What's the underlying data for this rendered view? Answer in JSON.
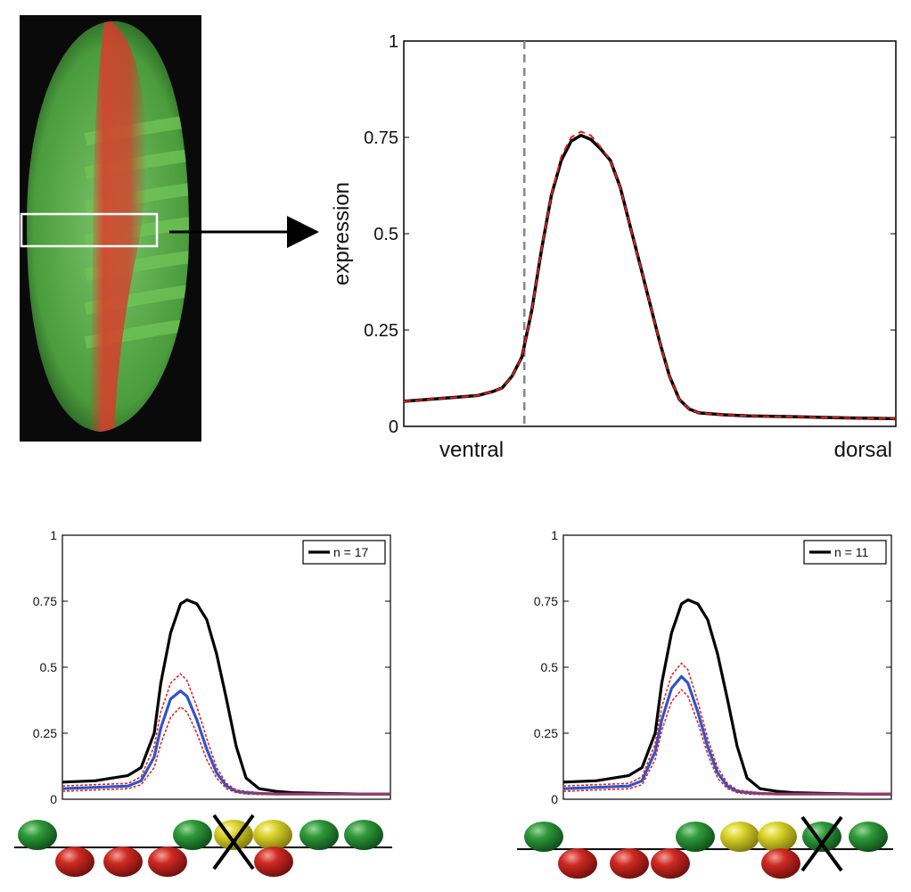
{
  "colors": {
    "mean": "#000000",
    "fit": "#e3231c",
    "mutant": "#2f55c8",
    "marker": "#888888",
    "embryo_bg": "#0a0a0a",
    "embryo_green": "#4fae3c",
    "embryo_red": "#e0392b",
    "site_green": "#1f7a2c",
    "site_red": "#b3201c",
    "site_yellow": "#c9c21e"
  },
  "embryo": {
    "icon": "embryo-fluorescence-image",
    "stripe_count": 7,
    "callout": "arrow-right"
  },
  "chart_data": [
    {
      "type": "line",
      "title": "",
      "xlabel": "",
      "ylabel": "expression",
      "x_end_labels": [
        "ventral",
        "dorsal"
      ],
      "xlim": [
        0,
        1
      ],
      "ylim": [
        0,
        1
      ],
      "yticks": [
        0,
        0.25,
        0.5,
        0.75,
        1
      ],
      "ytick_labels": [
        "0",
        "0.25",
        "0.5",
        "0.75",
        "1"
      ],
      "grid": false,
      "legend": null,
      "vline": {
        "x": 0.245,
        "style": "dashed"
      },
      "x": [
        0,
        0.05,
        0.1,
        0.15,
        0.18,
        0.2,
        0.22,
        0.24,
        0.26,
        0.28,
        0.3,
        0.32,
        0.34,
        0.36,
        0.38,
        0.4,
        0.42,
        0.44,
        0.46,
        0.48,
        0.5,
        0.52,
        0.54,
        0.56,
        0.58,
        0.6,
        0.65,
        0.7,
        0.8,
        0.9,
        1
      ],
      "series": [
        {
          "style": "solid",
          "values": [
            0.065,
            0.07,
            0.075,
            0.08,
            0.09,
            0.1,
            0.13,
            0.18,
            0.3,
            0.46,
            0.6,
            0.69,
            0.74,
            0.755,
            0.745,
            0.72,
            0.69,
            0.62,
            0.52,
            0.42,
            0.32,
            0.22,
            0.13,
            0.07,
            0.045,
            0.035,
            0.03,
            0.027,
            0.025,
            0.022,
            0.02
          ]
        },
        {
          "style": "dashed",
          "values": [
            0.065,
            0.07,
            0.075,
            0.08,
            0.09,
            0.1,
            0.13,
            0.18,
            0.3,
            0.46,
            0.6,
            0.7,
            0.75,
            0.765,
            0.755,
            0.725,
            0.69,
            0.62,
            0.52,
            0.42,
            0.32,
            0.22,
            0.13,
            0.07,
            0.045,
            0.035,
            0.03,
            0.027,
            0.025,
            0.022,
            0.02
          ]
        }
      ]
    },
    {
      "type": "line",
      "title": "",
      "xlabel": "",
      "ylabel": "",
      "xlim": [
        0,
        1
      ],
      "ylim": [
        0,
        1
      ],
      "yticks": [
        0,
        0.25,
        0.5,
        0.75,
        1
      ],
      "ytick_labels": [
        "0",
        "0.25",
        "0.5",
        "0.75",
        "1"
      ],
      "grid": false,
      "legend": {
        "position": "top-right",
        "entries": [
          "n = 17"
        ]
      },
      "x": [
        0,
        0.1,
        0.2,
        0.24,
        0.28,
        0.3,
        0.33,
        0.36,
        0.38,
        0.41,
        0.44,
        0.47,
        0.5,
        0.53,
        0.56,
        0.6,
        0.65,
        0.7,
        0.8,
        0.9,
        1
      ],
      "series": [
        {
          "name": "n = 17",
          "style": "solid",
          "values": [
            0.065,
            0.07,
            0.09,
            0.12,
            0.25,
            0.44,
            0.63,
            0.74,
            0.755,
            0.74,
            0.68,
            0.55,
            0.38,
            0.2,
            0.08,
            0.04,
            0.03,
            0.025,
            0.022,
            0.02,
            0.02
          ]
        },
        {
          "style": "mean",
          "values": [
            0.04,
            0.045,
            0.05,
            0.07,
            0.16,
            0.27,
            0.38,
            0.41,
            0.39,
            0.3,
            0.19,
            0.1,
            0.05,
            0.03,
            0.025,
            0.022,
            0.02,
            0.02,
            0.02,
            0.02,
            0.02
          ]
        },
        {
          "style": "upper",
          "values": [
            0.05,
            0.055,
            0.06,
            0.085,
            0.2,
            0.33,
            0.44,
            0.475,
            0.45,
            0.35,
            0.23,
            0.12,
            0.06,
            0.035,
            0.03,
            0.025,
            0.022,
            0.022,
            0.022,
            0.022,
            0.022
          ]
        },
        {
          "style": "lower",
          "values": [
            0.03,
            0.035,
            0.04,
            0.055,
            0.12,
            0.21,
            0.31,
            0.35,
            0.33,
            0.25,
            0.15,
            0.08,
            0.04,
            0.025,
            0.02,
            0.018,
            0.018,
            0.018,
            0.018,
            0.018,
            0.018
          ]
        }
      ]
    },
    {
      "type": "line",
      "title": "",
      "xlabel": "",
      "ylabel": "",
      "xlim": [
        0,
        1
      ],
      "ylim": [
        0,
        1
      ],
      "yticks": [
        0,
        0.25,
        0.5,
        0.75,
        1
      ],
      "ytick_labels": [
        "0",
        "0.25",
        "0.5",
        "0.75",
        "1"
      ],
      "grid": false,
      "legend": {
        "position": "top-right",
        "entries": [
          "n = 11"
        ]
      },
      "x": [
        0,
        0.1,
        0.2,
        0.24,
        0.28,
        0.3,
        0.33,
        0.36,
        0.38,
        0.41,
        0.44,
        0.47,
        0.5,
        0.53,
        0.56,
        0.6,
        0.65,
        0.7,
        0.8,
        0.9,
        1
      ],
      "series": [
        {
          "name": "n = 11",
          "style": "solid",
          "values": [
            0.065,
            0.07,
            0.09,
            0.12,
            0.25,
            0.44,
            0.63,
            0.74,
            0.755,
            0.74,
            0.68,
            0.55,
            0.38,
            0.2,
            0.08,
            0.04,
            0.03,
            0.025,
            0.022,
            0.02,
            0.02
          ]
        },
        {
          "style": "mean",
          "values": [
            0.04,
            0.045,
            0.05,
            0.07,
            0.18,
            0.3,
            0.42,
            0.465,
            0.44,
            0.33,
            0.2,
            0.1,
            0.05,
            0.03,
            0.025,
            0.022,
            0.02,
            0.02,
            0.02,
            0.02,
            0.02
          ]
        },
        {
          "style": "upper",
          "values": [
            0.05,
            0.055,
            0.06,
            0.085,
            0.21,
            0.35,
            0.47,
            0.515,
            0.49,
            0.37,
            0.23,
            0.12,
            0.06,
            0.035,
            0.03,
            0.025,
            0.022,
            0.022,
            0.022,
            0.022,
            0.022
          ]
        },
        {
          "style": "lower",
          "values": [
            0.03,
            0.035,
            0.04,
            0.055,
            0.15,
            0.26,
            0.37,
            0.415,
            0.39,
            0.29,
            0.17,
            0.08,
            0.04,
            0.025,
            0.02,
            0.018,
            0.018,
            0.018,
            0.018,
            0.018,
            0.018
          ]
        }
      ]
    }
  ],
  "site_rows": [
    {
      "top": [
        {
          "color": "green"
        },
        {
          "color": "green"
        },
        {
          "color": "yellow",
          "crossed": true
        },
        {
          "color": "yellow"
        },
        {
          "color": "green"
        },
        {
          "color": "green"
        }
      ],
      "bottom": [
        {
          "color": "red"
        },
        {
          "color": "red"
        },
        {
          "color": "red"
        },
        {
          "color": "red"
        }
      ]
    },
    {
      "top": [
        {
          "color": "green"
        },
        {
          "color": "green"
        },
        {
          "color": "yellow"
        },
        {
          "color": "yellow"
        },
        {
          "color": "green",
          "crossed": true
        },
        {
          "color": "green"
        }
      ],
      "bottom": [
        {
          "color": "red"
        },
        {
          "color": "red"
        },
        {
          "color": "red"
        },
        {
          "color": "red"
        }
      ]
    }
  ]
}
